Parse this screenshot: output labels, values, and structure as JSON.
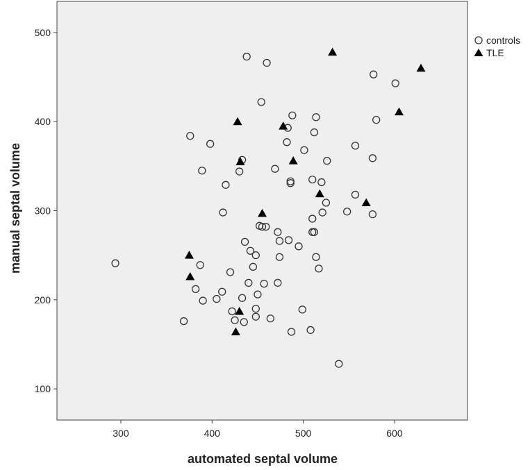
{
  "chart_data": {
    "type": "scatter",
    "xlabel": "automated septal volume",
    "ylabel": "manual septal volume",
    "xlim": [
      230,
      680
    ],
    "ylim": [
      65,
      535
    ],
    "x_ticks": [
      300,
      400,
      500,
      600
    ],
    "y_ticks": [
      100,
      200,
      300,
      400,
      500
    ],
    "grid": false,
    "legend_position": "top-right outside",
    "background_color": "#efefef",
    "series": [
      {
        "name": "controls",
        "marker": "open-circle",
        "color": "#333333",
        "points": [
          [
            294,
            241
          ],
          [
            369,
            176
          ],
          [
            376,
            384
          ],
          [
            382,
            212
          ],
          [
            387,
            239
          ],
          [
            389,
            345
          ],
          [
            390,
            199
          ],
          [
            398,
            375
          ],
          [
            405,
            201
          ],
          [
            411,
            209
          ],
          [
            412,
            298
          ],
          [
            415,
            329
          ],
          [
            420,
            231
          ],
          [
            422,
            187
          ],
          [
            425,
            177
          ],
          [
            430,
            344
          ],
          [
            433,
            357
          ],
          [
            433,
            202
          ],
          [
            435,
            175
          ],
          [
            436,
            265
          ],
          [
            438,
            473
          ],
          [
            440,
            219
          ],
          [
            442,
            255
          ],
          [
            445,
            237
          ],
          [
            448,
            250
          ],
          [
            448,
            190
          ],
          [
            448,
            181
          ],
          [
            450,
            206
          ],
          [
            452,
            283
          ],
          [
            455,
            282
          ],
          [
            454,
            422
          ],
          [
            457,
            218
          ],
          [
            459,
            282
          ],
          [
            460,
            466
          ],
          [
            464,
            179
          ],
          [
            469,
            347
          ],
          [
            472,
            219
          ],
          [
            472,
            276
          ],
          [
            474,
            266
          ],
          [
            474,
            248
          ],
          [
            482,
            377
          ],
          [
            483,
            393
          ],
          [
            484,
            267
          ],
          [
            486,
            333
          ],
          [
            486,
            331
          ],
          [
            487,
            164
          ],
          [
            488,
            407
          ],
          [
            495,
            260
          ],
          [
            499,
            189
          ],
          [
            501,
            368
          ],
          [
            508,
            166
          ],
          [
            510,
            335
          ],
          [
            510,
            291
          ],
          [
            510,
            276
          ],
          [
            512,
            276
          ],
          [
            512,
            388
          ],
          [
            514,
            405
          ],
          [
            514,
            248
          ],
          [
            517,
            235
          ],
          [
            520,
            332
          ],
          [
            521,
            298
          ],
          [
            525,
            309
          ],
          [
            526,
            356
          ],
          [
            539,
            128
          ],
          [
            548,
            299
          ],
          [
            557,
            373
          ],
          [
            557,
            318
          ],
          [
            576,
            359
          ],
          [
            576,
            296
          ],
          [
            577,
            453
          ],
          [
            580,
            402
          ],
          [
            601,
            443
          ]
        ]
      },
      {
        "name": "TLE",
        "marker": "filled-triangle",
        "color": "#000000",
        "points": [
          [
            375,
            250
          ],
          [
            376,
            226
          ],
          [
            426,
            164
          ],
          [
            428,
            400
          ],
          [
            430,
            187
          ],
          [
            431,
            355
          ],
          [
            455,
            297
          ],
          [
            478,
            395
          ],
          [
            489,
            356
          ],
          [
            518,
            319
          ],
          [
            532,
            478
          ],
          [
            569,
            309
          ],
          [
            605,
            411
          ],
          [
            629,
            460
          ]
        ]
      }
    ]
  }
}
